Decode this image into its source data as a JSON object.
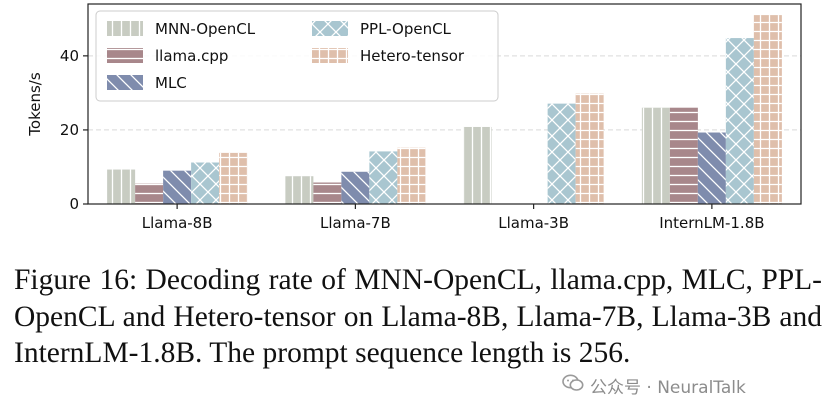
{
  "chart_data": {
    "type": "bar",
    "title": "",
    "xlabel": "",
    "ylabel": "Tokens/s",
    "ylim": [
      0,
      54
    ],
    "yticks": [
      0,
      20,
      40
    ],
    "grid": "horizontal",
    "legend": "top-left",
    "categories": [
      "Llama-8B",
      "Llama-7B",
      "Llama-3B",
      "InternLM-1.8B"
    ],
    "series": [
      {
        "name": "MNN-OpenCL",
        "values": [
          9.3,
          7.5,
          20.8,
          26.0
        ],
        "color": "#c8ccc2",
        "hatch": "vertical"
      },
      {
        "name": "llama.cpp",
        "values": [
          5.5,
          5.8,
          null,
          26.0
        ],
        "color": "#a8878b",
        "hatch": "horizontal"
      },
      {
        "name": "MLC",
        "values": [
          9.0,
          8.7,
          null,
          19.3
        ],
        "color": "#7f8cad",
        "hatch": "backslash"
      },
      {
        "name": "PPL-OpenCL",
        "values": [
          11.2,
          14.2,
          27.1,
          44.8
        ],
        "color": "#a9c6d0",
        "hatch": "cross"
      },
      {
        "name": "Hetero-tensor",
        "values": [
          13.8,
          15.2,
          29.8,
          51.0
        ],
        "color": "#dfbfab",
        "hatch": "grid"
      }
    ]
  },
  "caption": "Figure 16: Decoding rate of MNN-OpenCL, llama.cpp, MLC, PPL-OpenCL and Hetero-tensor on Llama-8B, Llama-7B, Llama-3B and InternLM-1.8B. The prompt sequence length is 256.",
  "watermark": {
    "text": "公众号 · NeuralTalk",
    "icon": "wechat-icon"
  }
}
